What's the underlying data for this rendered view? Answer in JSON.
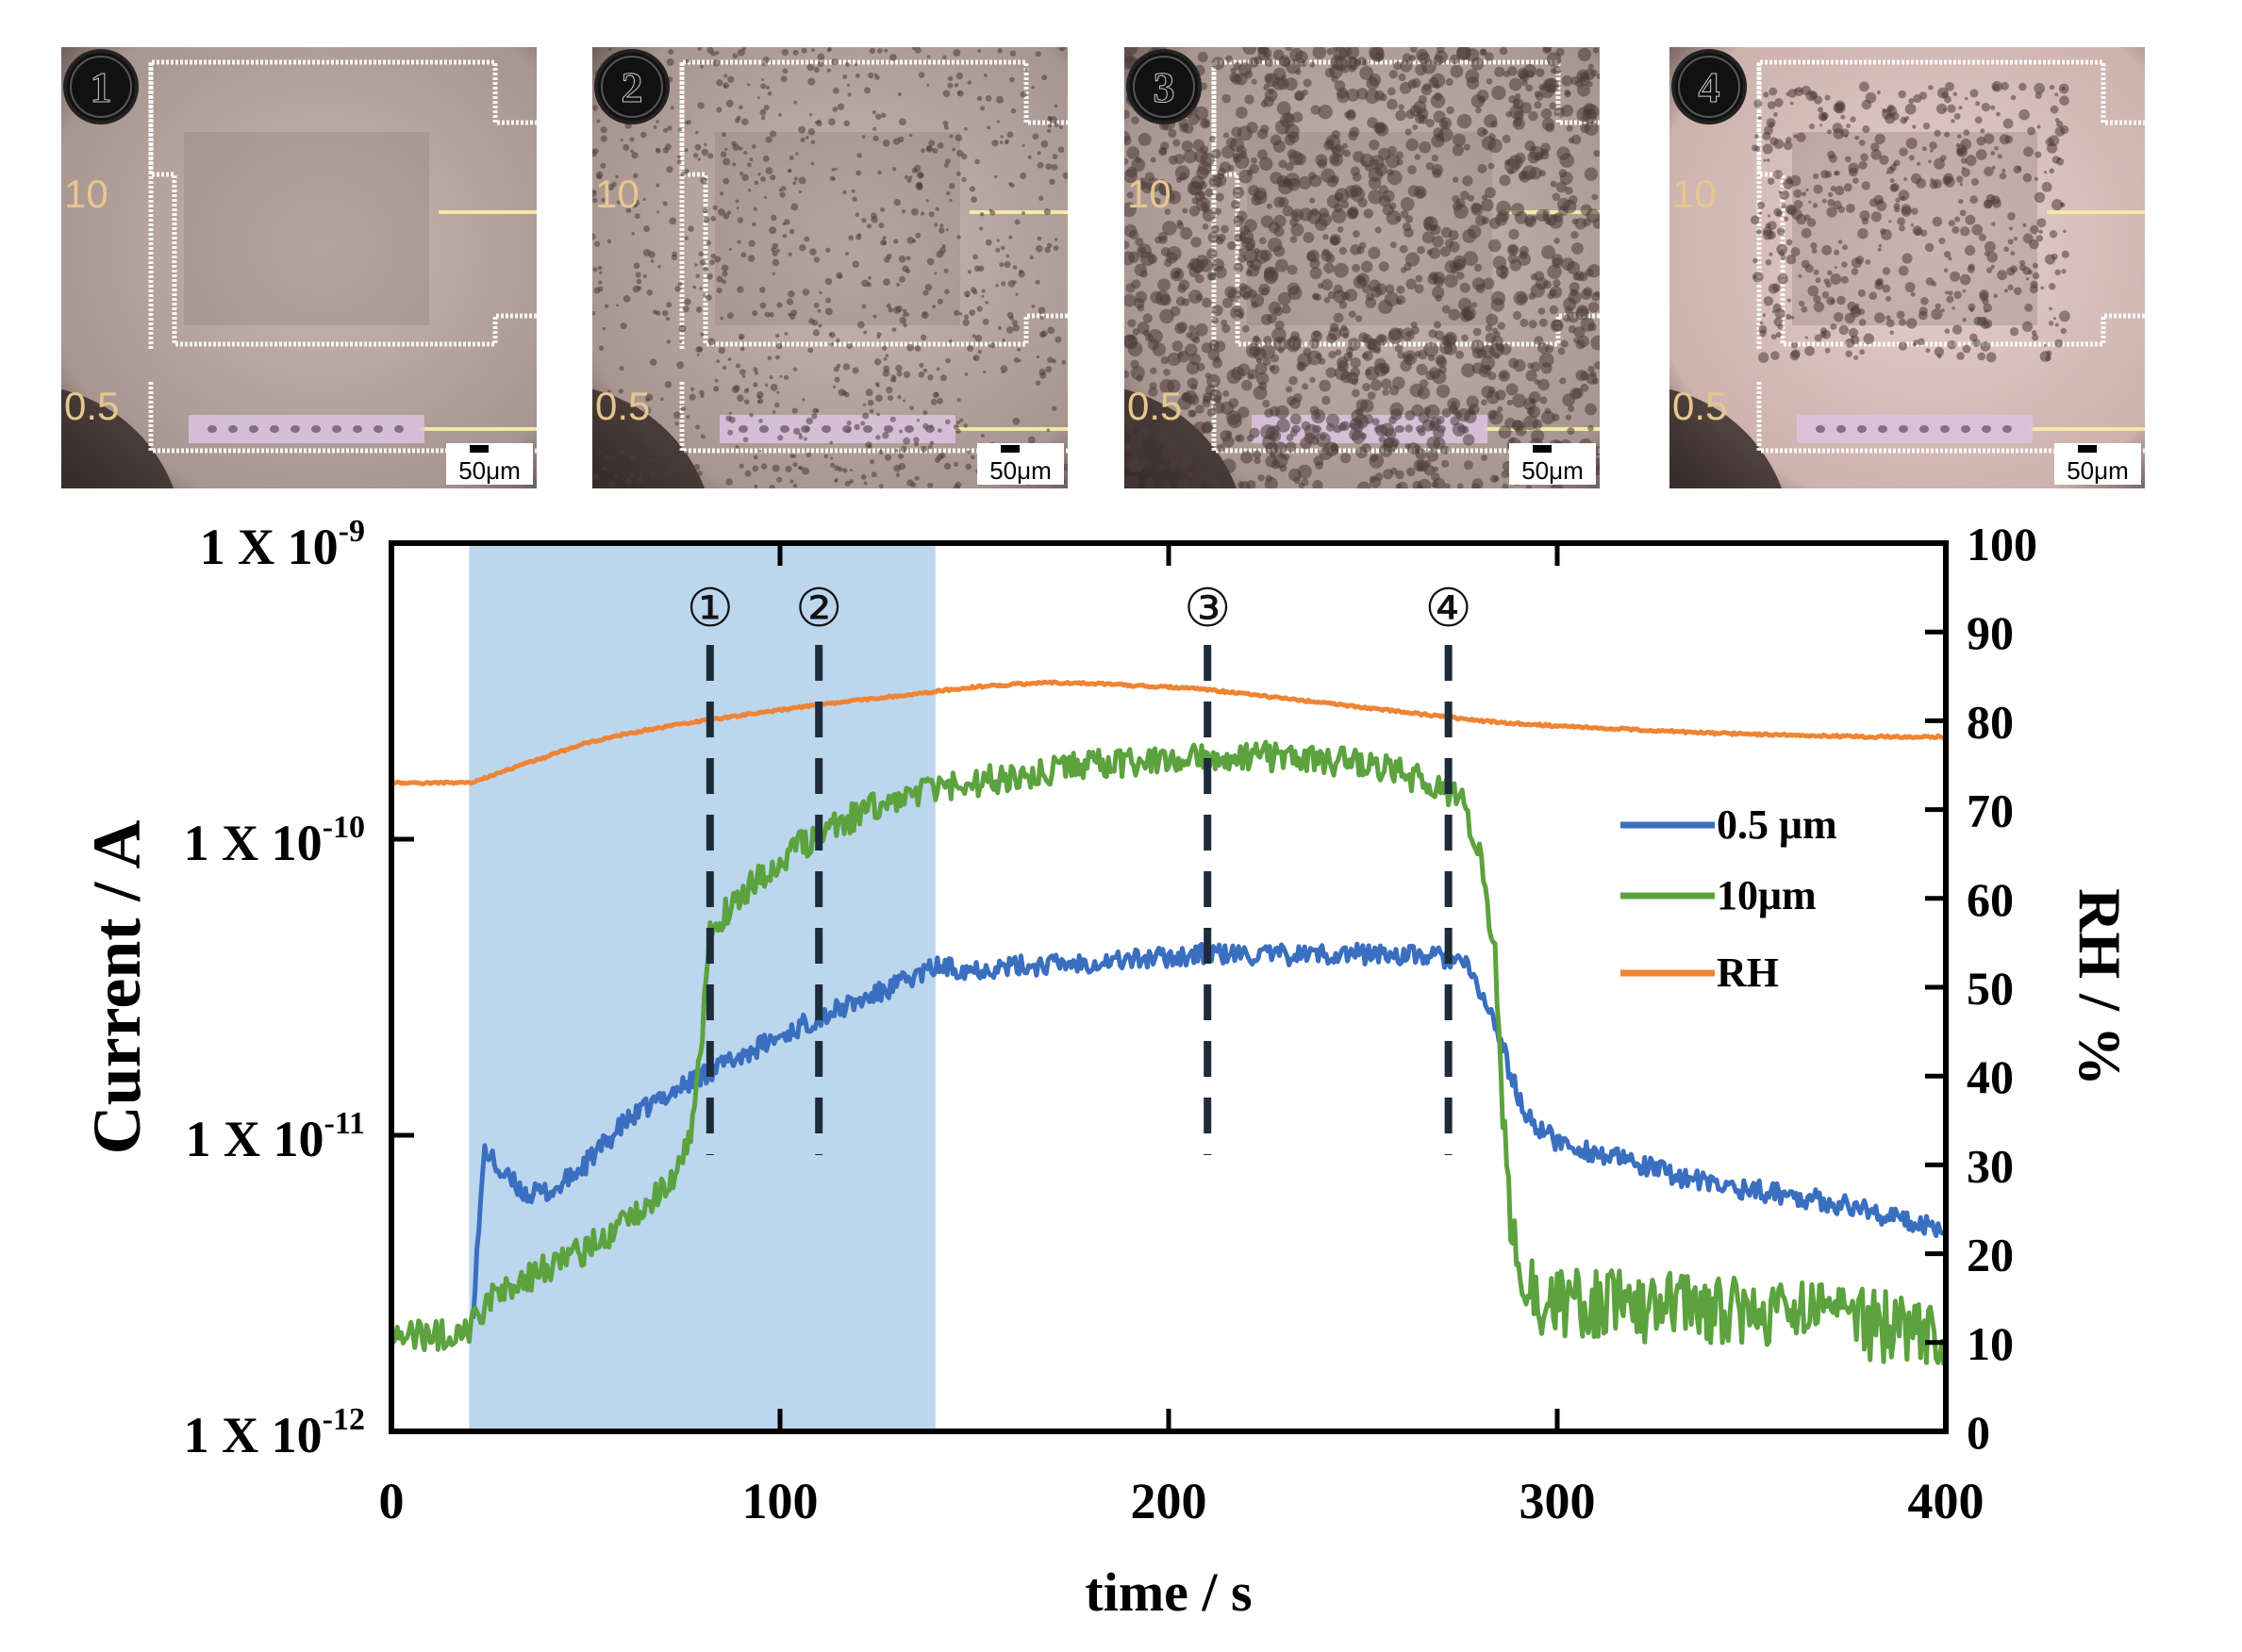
{
  "micrographs": [
    {
      "marker": "1",
      "labels": [
        "10",
        "0.5"
      ],
      "scale": "50μm",
      "droplets": "none"
    },
    {
      "marker": "2",
      "labels": [
        "10",
        "0.5"
      ],
      "scale": "50μm",
      "droplets": "small"
    },
    {
      "marker": "3",
      "labels": [
        "10",
        "0.5"
      ],
      "scale": "50μm",
      "droplets": "dense"
    },
    {
      "marker": "4",
      "labels": [
        "10",
        "0.5"
      ],
      "scale": "50μm",
      "droplets": "evaporating"
    }
  ],
  "chart_data": {
    "type": "line",
    "xlabel": "time / s",
    "ylabel_left": "Current / A",
    "ylabel_right": "RH / %",
    "xlim": [
      0,
      400
    ],
    "x_ticks": [
      "0",
      "100",
      "200",
      "300",
      "400"
    ],
    "ylim_left_log": [
      1e-12,
      1e-09
    ],
    "y_left_ticks": [
      {
        "base": "1 X 10",
        "exp": "-9",
        "value": 1e-09
      },
      {
        "base": "1 X 10",
        "exp": "-10",
        "value": 1e-10
      },
      {
        "base": "1 X 10",
        "exp": "-11",
        "value": 1e-11
      },
      {
        "base": "1 X 10",
        "exp": "-12",
        "value": 1e-12
      }
    ],
    "ylim_right": [
      0,
      100
    ],
    "y_right_ticks": [
      "0",
      "10",
      "20",
      "30",
      "40",
      "50",
      "60",
      "70",
      "80",
      "90",
      "100"
    ],
    "shaded_region": {
      "x_start": 20,
      "x_end": 140,
      "color": "#bcd6ee"
    },
    "markers": [
      {
        "label": "①",
        "x": 82
      },
      {
        "label": "②",
        "x": 110
      },
      {
        "label": "③",
        "x": 210
      },
      {
        "label": "④",
        "x": 272
      }
    ],
    "series": [
      {
        "name": "0.5 μm",
        "axis": "left",
        "color": "#3a6fc0",
        "x": [
          0,
          10,
          20,
          21,
          24,
          28,
          35,
          42,
          50,
          60,
          70,
          82,
          95,
          110,
          125,
          140,
          150,
          165,
          180,
          200,
          210,
          225,
          240,
          255,
          270,
          276,
          280,
          285,
          288,
          292,
          300,
          320,
          340,
          360,
          380,
          390,
          400
        ],
        "y": [
          null,
          null,
          null,
          2.6e-12,
          9e-12,
          7.5e-12,
          6.3e-12,
          6.5e-12,
          8e-12,
          1.1e-11,
          1.35e-11,
          1.65e-11,
          2e-11,
          2.5e-11,
          3e-11,
          3.7e-11,
          3.65e-11,
          3.75e-11,
          3.85e-11,
          4e-11,
          4.1e-11,
          4.05e-11,
          4.1e-11,
          4.1e-11,
          4e-11,
          3.8e-11,
          3.1e-11,
          2.2e-11,
          1.6e-11,
          1.15e-11,
          9.5e-12,
          8e-12,
          6.8e-12,
          6.3e-12,
          5.6e-12,
          5.1e-12,
          4.9e-12
        ]
      },
      {
        "name": "10μm",
        "axis": "left",
        "color": "#5ca23e",
        "x": [
          0,
          10,
          20,
          25,
          35,
          45,
          55,
          65,
          72,
          77,
          80,
          82,
          87,
          95,
          105,
          115,
          125,
          140,
          155,
          170,
          185,
          200,
          210,
          225,
          240,
          255,
          265,
          270,
          276,
          280,
          284,
          286,
          288,
          290,
          293,
          297,
          310,
          330,
          350,
          370,
          390,
          400
        ],
        "y": [
          2.2e-12,
          2.1e-12,
          2.2e-12,
          2.8e-12,
          3.3e-12,
          3.8e-12,
          4.5e-12,
          5.6e-12,
          7e-12,
          9.5e-12,
          2.2e-11,
          5e-11,
          5.8e-11,
          7.5e-11,
          9.5e-11,
          1.12e-10,
          1.3e-10,
          1.45e-10,
          1.6e-10,
          1.72e-10,
          1.8e-10,
          1.9e-10,
          1.92e-10,
          1.9e-10,
          1.85e-10,
          1.75e-10,
          1.58e-10,
          1.5e-10,
          1.3e-10,
          9e-11,
          4e-11,
          1.2e-11,
          5e-12,
          3.5e-12,
          2.9e-12,
          2.75e-12,
          2.7e-12,
          2.6e-12,
          2.5e-12,
          2.4e-12,
          2.2e-12,
          2.1e-12
        ]
      },
      {
        "name": "RH",
        "axis": "right",
        "color": "#ee8434",
        "x": [
          0,
          10,
          20,
          22,
          30,
          40,
          50,
          60,
          70,
          80,
          90,
          100,
          110,
          120,
          130,
          140,
          150,
          160,
          170,
          180,
          190,
          200,
          210,
          220,
          230,
          240,
          250,
          260,
          270,
          280,
          290,
          300,
          310,
          320,
          330,
          340,
          350,
          360,
          370,
          380,
          390,
          400
        ],
        "y": [
          73,
          73,
          73,
          73.2,
          74.5,
          76,
          77.5,
          78.5,
          79.3,
          80,
          80.6,
          81.2,
          81.8,
          82.3,
          82.8,
          83.3,
          83.8,
          84.1,
          84.3,
          84.2,
          84,
          83.8,
          83.5,
          83,
          82.5,
          82,
          81.5,
          81,
          80.5,
          80,
          79.7,
          79.4,
          79.2,
          79,
          78.8,
          78.6,
          78.5,
          78.4,
          78.3,
          78.2,
          78.2,
          78.2
        ]
      }
    ],
    "legend": [
      {
        "label": "0.5 μm",
        "color": "#3a6fc0"
      },
      {
        "label": "10μm",
        "color": "#5ca23e"
      },
      {
        "label": "RH",
        "color": "#ee8434"
      }
    ],
    "legend_position": "right-middle"
  }
}
